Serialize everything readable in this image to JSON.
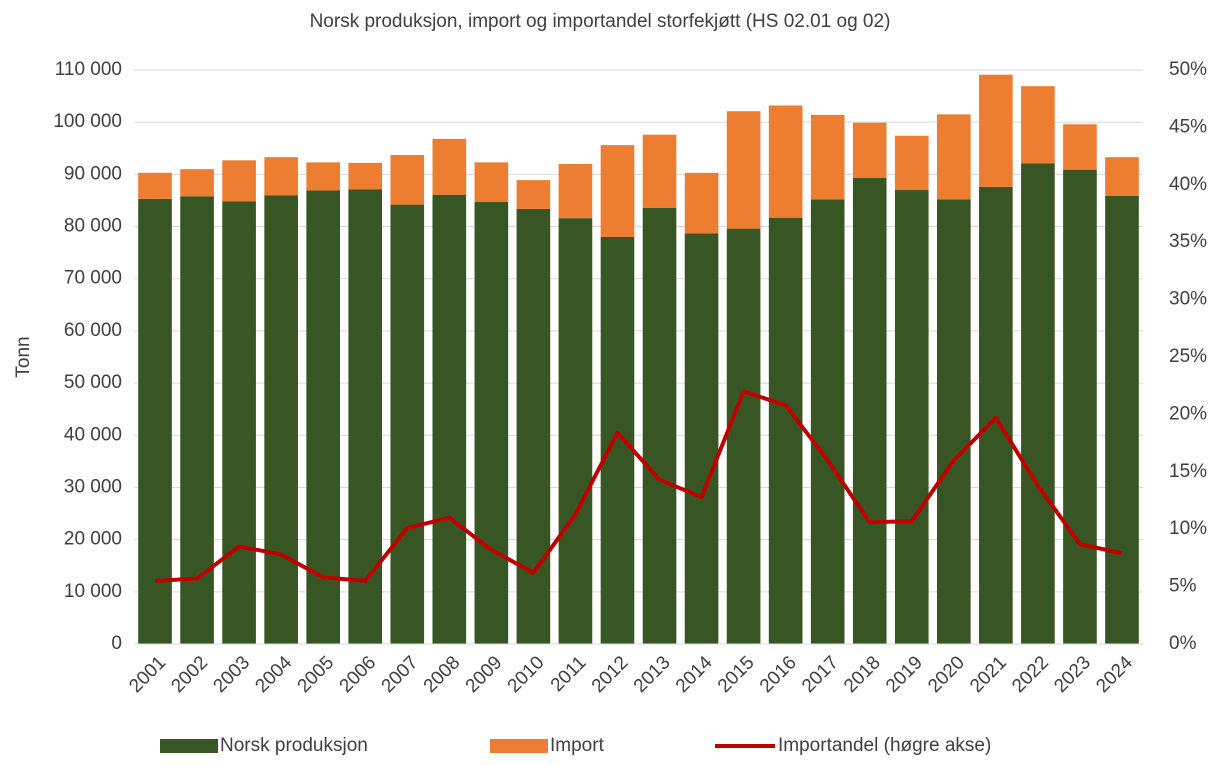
{
  "chart_data": {
    "type": "combo",
    "title": "Norsk produksjon, import og importandel storfekjøtt (HS 02.01 og 02)",
    "y_label": "Tonn",
    "stacked": true,
    "categories": [
      "2001",
      "2002",
      "2003",
      "2004",
      "2005",
      "2006",
      "2007",
      "2008",
      "2009",
      "2010",
      "2011",
      "2012",
      "2013",
      "2014",
      "2015",
      "2016",
      "2017",
      "2018",
      "2019",
      "2020",
      "2021",
      "2022",
      "2023",
      "2024"
    ],
    "series": [
      {
        "name": "Norsk produksjon",
        "type": "bar",
        "axis": "y",
        "color": "#375623",
        "values": [
          85300,
          85800,
          84800,
          86000,
          86900,
          87100,
          84200,
          86100,
          84700,
          83400,
          81600,
          78000,
          83600,
          78700,
          79600,
          81700,
          85200,
          89300,
          87000,
          85200,
          87600,
          92100,
          90900,
          85900
        ]
      },
      {
        "name": "Import",
        "type": "bar",
        "axis": "y",
        "color": "#ed7d31",
        "values": [
          5000,
          5200,
          7900,
          7300,
          5400,
          5100,
          9500,
          10700,
          7600,
          5500,
          10400,
          17600,
          14000,
          11600,
          22500,
          21500,
          16200,
          10600,
          10400,
          16300,
          21500,
          14800,
          8700,
          7400
        ]
      },
      {
        "name": "Importandel (høgre akse)",
        "type": "line",
        "axis": "y2",
        "color": "#c00000",
        "values": [
          5.5,
          5.7,
          8.5,
          7.8,
          5.8,
          5.5,
          10.1,
          11.0,
          8.2,
          6.2,
          11.3,
          18.4,
          14.3,
          12.8,
          22.0,
          20.8,
          16.0,
          10.6,
          10.7,
          16.0,
          19.7,
          13.8,
          8.7,
          7.9
        ]
      }
    ],
    "ylim": [
      0,
      110000
    ],
    "yticks": [
      0,
      {
        "value": 10000,
        "label": "10 000"
      },
      {
        "value": 20000,
        "label": "20 000"
      },
      {
        "value": 30000,
        "label": "30 000"
      },
      {
        "value": 40000,
        "label": "40 000"
      },
      {
        "value": 50000,
        "label": "50 000"
      },
      {
        "value": 60000,
        "label": "60 000"
      },
      {
        "value": 70000,
        "label": "70 000"
      },
      {
        "value": 80000,
        "label": "80 000"
      },
      {
        "value": 90000,
        "label": "90 000"
      },
      {
        "value": 100000,
        "label": "100 000"
      },
      {
        "value": 110000,
        "label": "110 000"
      }
    ],
    "y2lim": [
      0,
      50
    ],
    "y2ticks": [
      {
        "value": 0,
        "label": "0%"
      },
      {
        "value": 5,
        "label": "5%"
      },
      {
        "value": 10,
        "label": "10%"
      },
      {
        "value": 15,
        "label": "15%"
      },
      {
        "value": 20,
        "label": "20%"
      },
      {
        "value": 25,
        "label": "25%"
      },
      {
        "value": 30,
        "label": "30%"
      },
      {
        "value": 35,
        "label": "35%"
      },
      {
        "value": 40,
        "label": "40%"
      },
      {
        "value": 45,
        "label": "45%"
      },
      {
        "value": 50,
        "label": "50%"
      }
    ],
    "grid": true,
    "legend": "bottom"
  }
}
